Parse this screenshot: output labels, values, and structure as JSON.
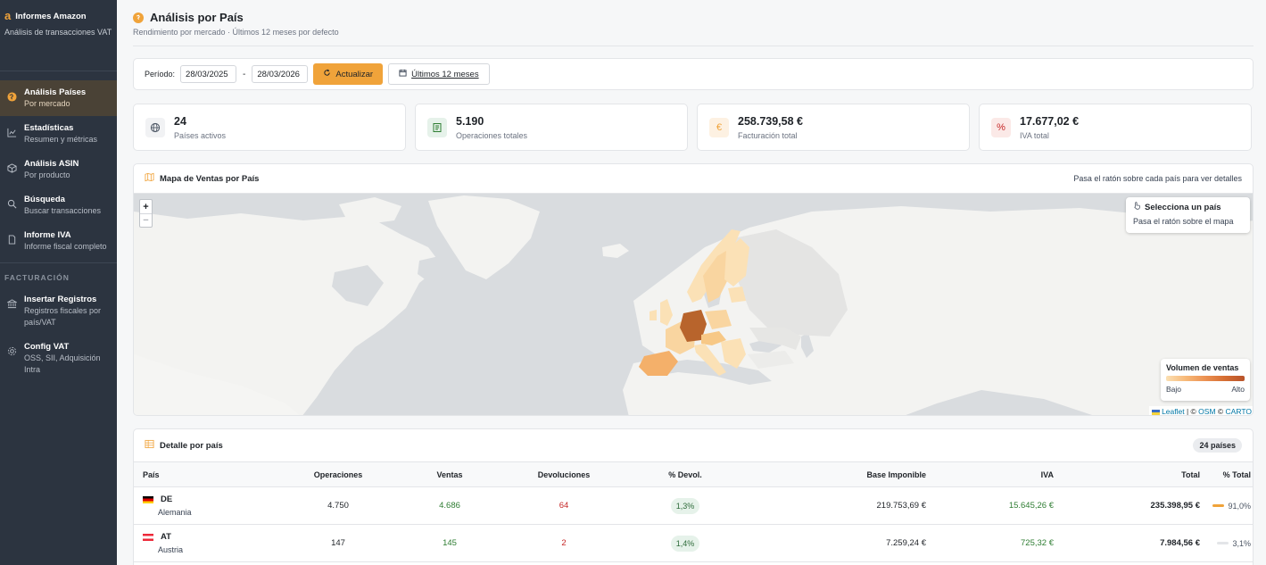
{
  "sidebar": {
    "brand_logo": "a",
    "brand_title": "Informes Amazon",
    "brand_subtitle": "Análisis de transacciones VAT",
    "items": [
      {
        "title": "Análisis Países",
        "subtitle": "Por mercado",
        "icon": "globe-icon"
      },
      {
        "title": "Estadísticas",
        "subtitle": "Resumen y métricas",
        "icon": "chart-line-icon"
      },
      {
        "title": "Análisis ASIN",
        "subtitle": "Por producto",
        "icon": "box-icon"
      },
      {
        "title": "Búsqueda",
        "subtitle": "Buscar transacciones",
        "icon": "search-icon"
      },
      {
        "title": "Informe IVA",
        "subtitle": "Informe fiscal completo",
        "icon": "document-icon"
      }
    ],
    "section_label": "FACTURACIÓN",
    "billing_items": [
      {
        "title": "Insertar Registros",
        "subtitle": "Registros fiscales por país/VAT",
        "icon": "bank-icon"
      },
      {
        "title": "Config VAT",
        "subtitle": "OSS, SII, Adquisición Intra",
        "icon": "gear-icon"
      }
    ]
  },
  "header": {
    "title": "Análisis por País",
    "subtitle": "Rendimiento por mercado · Últimos 12 meses por defecto"
  },
  "filters": {
    "period_label": "Período:",
    "date_from": "28/03/2025",
    "separator": "-",
    "date_to": "28/03/2026",
    "refresh_label": "Actualizar",
    "last12_label": "Últimos 12 meses"
  },
  "kpis": [
    {
      "value": "24",
      "label": "Países activos",
      "icon": "globe-icon",
      "color": "#f1f2f4"
    },
    {
      "value": "5.190",
      "label": "Operaciones totales",
      "icon": "receipt-icon",
      "color": "#e6f2ea"
    },
    {
      "value": "258.739,58 €",
      "label": "Facturación total",
      "icon": "euro-icon",
      "color": "#fdf1e2"
    },
    {
      "value": "17.677,02 €",
      "label": "IVA total",
      "icon": "percent-icon",
      "color": "#fbe9e7"
    }
  ],
  "map": {
    "title": "Mapa de Ventas por País",
    "hint": "Pasa el ratón sobre cada país para ver detalles",
    "zoom_in": "+",
    "zoom_out": "−",
    "info_title": "Selecciona un país",
    "info_subtitle": "Pasa el ratón sobre el mapa",
    "legend_title": "Volumen de ventas",
    "legend_low": "Bajo",
    "legend_high": "Alto",
    "attribution": {
      "leaflet": "Leaflet",
      "sep1": " | © ",
      "osm": "OSM",
      "sep2": " © ",
      "carto": "CARTO"
    }
  },
  "table": {
    "title": "Detalle por país",
    "count_badge": "24 países",
    "columns": [
      "País",
      "Operaciones",
      "Ventas",
      "Devoluciones",
      "% Devol.",
      "Base Imponible",
      "IVA",
      "Total",
      "% Total"
    ],
    "rows": [
      {
        "code": "DE",
        "name": "Alemania",
        "operations": "4.750",
        "sales": "4.686",
        "returns": "64",
        "return_pct": "1,3%",
        "base": "219.753,69 €",
        "vat": "15.645,26 €",
        "total": "235.398,95 €",
        "total_pct": "91,0%",
        "share": 0.91
      },
      {
        "code": "AT",
        "name": "Austria",
        "operations": "147",
        "sales": "145",
        "returns": "2",
        "return_pct": "1,4%",
        "base": "7.259,24 €",
        "vat": "725,32 €",
        "total": "7.984,56 €",
        "total_pct": "3,1%",
        "share": 0.031
      }
    ]
  },
  "colors": {
    "accent": "#f0a33a",
    "sidebar": "#2c3440",
    "germany": "#b8642c",
    "positive": "#2e7d32",
    "negative": "#c62828"
  }
}
